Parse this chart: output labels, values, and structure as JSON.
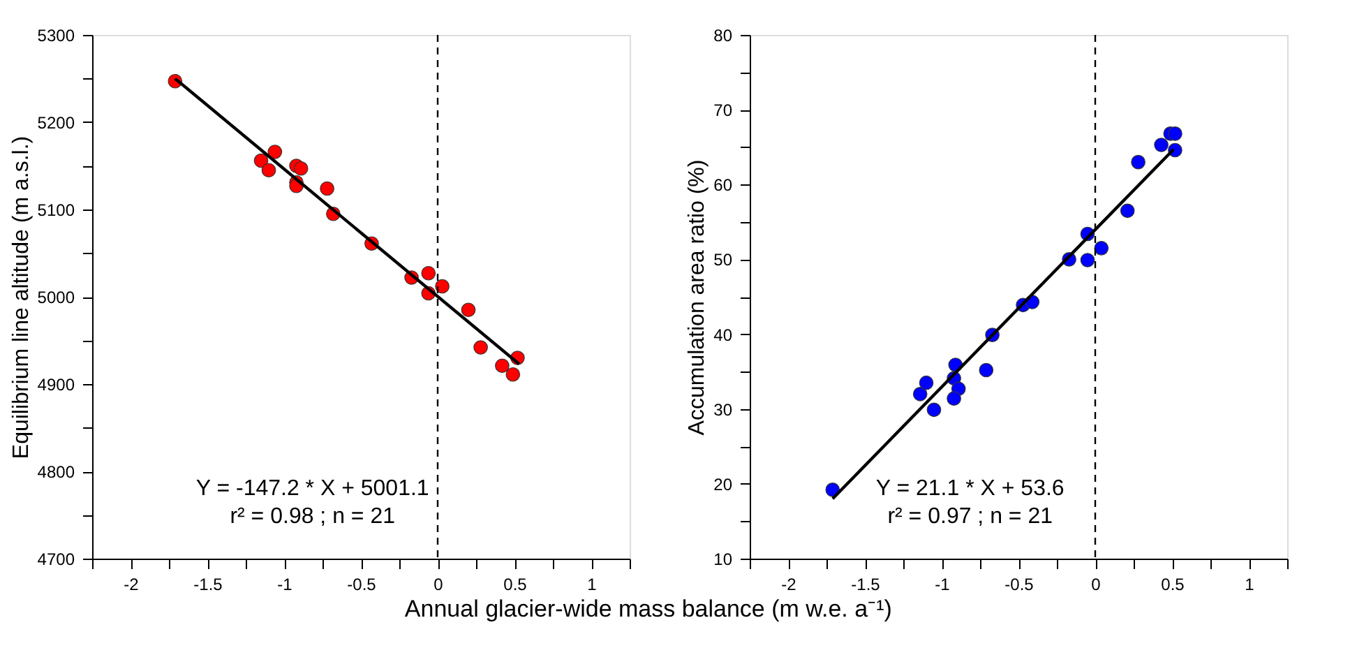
{
  "chart_data": [
    {
      "type": "scatter",
      "ylabel": "Equilibrium line altitude (m a.s.l.)",
      "xlabel": "Annual glacier-wide mass balance (m w.e. a⁻¹)",
      "xlim": [
        -2.25,
        1.25
      ],
      "xticks": [
        {
          "value": -2.25,
          "label": null
        },
        -2,
        {
          "value": -1.75,
          "label": null
        },
        -1.5,
        {
          "value": -1.25,
          "label": null
        },
        -1,
        {
          "value": -0.75,
          "label": null
        },
        -0.5,
        {
          "value": -0.25,
          "label": null
        },
        0,
        {
          "value": 0.25,
          "label": null
        },
        0.5,
        {
          "value": 0.75,
          "label": null
        },
        1,
        {
          "value": 1.25,
          "label": null
        }
      ],
      "ylim": [
        4700,
        5300
      ],
      "yticks": [
        4700,
        {
          "value": 4750,
          "label": null
        },
        4800,
        {
          "value": 4850,
          "label": null
        },
        4900,
        {
          "value": 4950,
          "label": null
        },
        5000,
        {
          "value": 5050,
          "label": null
        },
        5100,
        {
          "value": 5150,
          "label": null
        },
        5200,
        {
          "value": 5250,
          "label": null
        },
        5300
      ],
      "grid": false,
      "series": [
        {
          "type": "scatter",
          "marker": "circle",
          "color": "#ff0000",
          "x": [
            -1.71,
            -1.15,
            -1.06,
            -1.1,
            -0.92,
            -0.89,
            -0.92,
            -0.92,
            -0.72,
            -0.68,
            -0.43,
            -0.17,
            -0.06,
            -0.06,
            0.03,
            0.2,
            0.28,
            0.42,
            0.52,
            0.49
          ],
          "values": [
            5247,
            5156,
            5166,
            5145,
            5150,
            5147,
            5131,
            5127,
            5124,
            5095,
            5061,
            5022,
            5027,
            5004,
            5012,
            4985,
            4942,
            4921,
            4930,
            4911
          ]
        },
        {
          "type": "line",
          "color": "#000000",
          "line_style": "solid",
          "x": [
            -1.71,
            0.53
          ],
          "values": [
            5250,
            4923
          ]
        }
      ],
      "ref_lines": [
        {
          "axis": "x",
          "value": 0,
          "line_style": "dashed",
          "color": "#000000"
        }
      ],
      "annotations": [
        "Y = -147.2 * X + 5001.1",
        "r² = 0.98 ; n = 21"
      ]
    },
    {
      "type": "scatter",
      "ylabel": "Accumulation area ratio (%)",
      "xlim": [
        -2.25,
        1.25
      ],
      "xticks": [
        {
          "value": -2.25,
          "label": null
        },
        -2,
        {
          "value": -1.75,
          "label": null
        },
        -1.5,
        {
          "value": -1.25,
          "label": null
        },
        -1,
        {
          "value": -0.75,
          "label": null
        },
        -0.5,
        {
          "value": -0.25,
          "label": null
        },
        0,
        {
          "value": 0.25,
          "label": null
        },
        0.5,
        {
          "value": 0.75,
          "label": null
        },
        1,
        {
          "value": 1.25,
          "label": null
        }
      ],
      "ylim": [
        10,
        80
      ],
      "yticks": [
        10,
        {
          "value": 15,
          "label": null
        },
        20,
        {
          "value": 25,
          "label": null
        },
        30,
        {
          "value": 35,
          "label": null
        },
        40,
        {
          "value": 45,
          "label": null
        },
        50,
        {
          "value": 55,
          "label": null
        },
        60,
        {
          "value": 65,
          "label": null
        },
        70,
        {
          "value": 75,
          "label": null
        },
        80
      ],
      "grid": false,
      "series": [
        {
          "type": "scatter",
          "marker": "circle",
          "color": "#0000ff",
          "x": [
            -1.71,
            -1.14,
            -1.1,
            -1.05,
            -0.91,
            -0.92,
            -0.89,
            -0.92,
            -0.71,
            -0.67,
            -0.47,
            -0.41,
            -0.17,
            -0.05,
            -0.05,
            0.04,
            0.21,
            0.28,
            0.43,
            0.49,
            0.52,
            0.52
          ],
          "values": [
            19.2,
            32.0,
            33.5,
            29.9,
            35.9,
            34.1,
            32.7,
            31.4,
            35.2,
            39.9,
            43.9,
            44.3,
            50.0,
            53.4,
            49.9,
            51.5,
            56.5,
            63.0,
            65.3,
            66.8,
            66.8,
            64.6
          ]
        },
        {
          "type": "line",
          "color": "#000000",
          "line_style": "solid",
          "x": [
            -1.71,
            0.51
          ],
          "values": [
            18.0,
            64.7
          ]
        }
      ],
      "ref_lines": [
        {
          "axis": "x",
          "value": 0,
          "line_style": "dashed",
          "color": "#000000"
        }
      ],
      "annotations": [
        "Y = 21.1 * X + 53.6",
        "r² = 0.97 ; n = 21"
      ]
    }
  ]
}
